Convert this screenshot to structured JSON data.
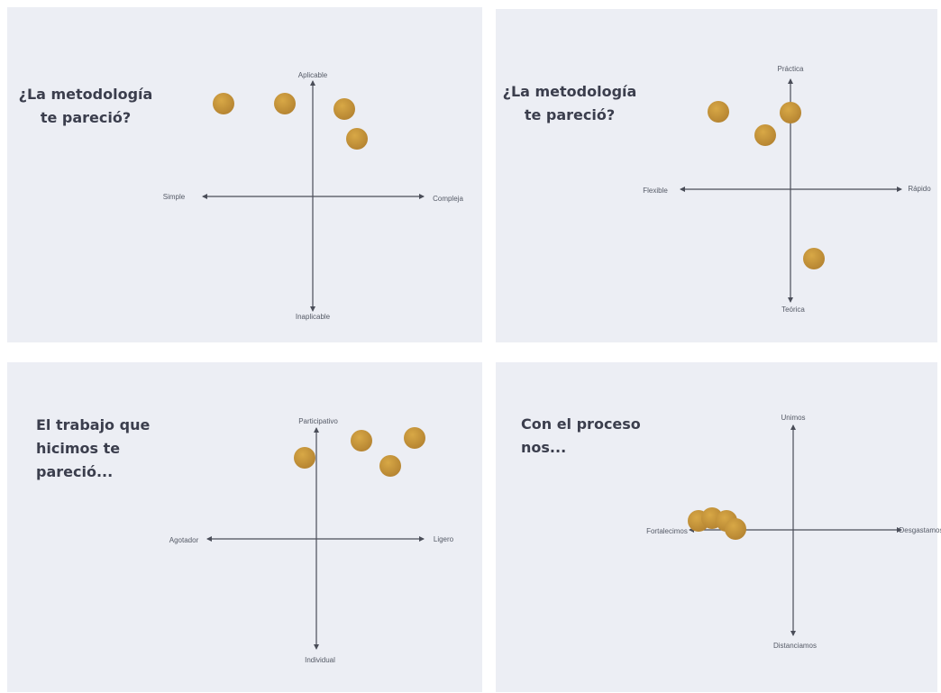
{
  "panels": [
    {
      "title": [
        "¿La metodología",
        "te pareció?"
      ],
      "axes": {
        "top": "Aplicable",
        "bottom": "Inaplicable",
        "left": "Simple",
        "right": "Compleja"
      }
    },
    {
      "title": [
        "¿La metodología",
        "te pareció?"
      ],
      "axes": {
        "top": "Práctica",
        "bottom": "Teórica",
        "left": "Flexible",
        "right": "Rápido"
      }
    },
    {
      "title": [
        "El trabajo que",
        "hicimos te",
        "pareció..."
      ],
      "axes": {
        "top": "Participativo",
        "bottom": "Individual",
        "left": "Agotador",
        "right": "Ligero"
      }
    },
    {
      "title": [
        "Con el proceso",
        "nos..."
      ],
      "axes": {
        "top": "Unimos",
        "bottom": "Distanciamos",
        "left": "Fortalecimos",
        "right": "Desgastamos"
      }
    }
  ]
}
